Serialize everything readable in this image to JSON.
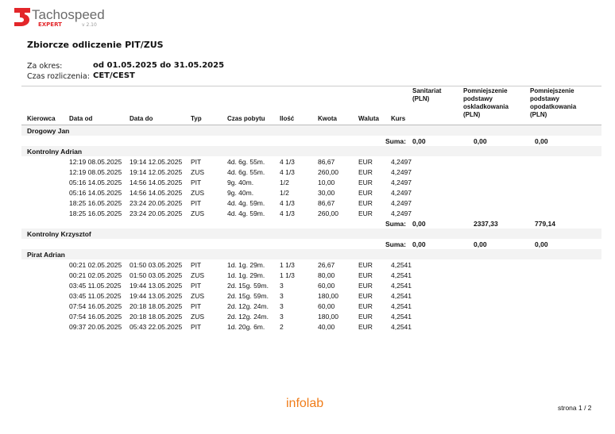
{
  "header": {
    "brand": "Tachospeed",
    "edition": "EXPERT",
    "version": "v 2.10",
    "title": "Zbiorcze odliczenie PIT/ZUS",
    "period_label": "Za okres:",
    "period_value": "od 01.05.2025 do 31.05.2025",
    "tz_label": "Czas rozliczenia:",
    "tz_value": "CET/CEST",
    "brand_color": "#e3262a"
  },
  "columns": [
    "Kierowca",
    "Data od",
    "Data do",
    "Typ",
    "Czas pobytu",
    "Ilość",
    "Kwota",
    "Waluta",
    "Kurs",
    "Sanitariat (PLN)",
    "Pomniejszenie podstawy oskladkowania (PLN)",
    "Pomniejszenie podstawy opodatkowania (PLN)"
  ],
  "sum_label": "Suma:",
  "groups": [
    {
      "driver": "Drogowy Jan",
      "rows": [],
      "sum": [
        "0,00",
        "0,00",
        "0,00"
      ]
    },
    {
      "driver": "Kontrolny Adrian",
      "rows": [
        [
          "12:19 08.05.2025",
          "19:14 12.05.2025",
          "PIT",
          "4d. 6g. 55m.",
          "4 1/3",
          "86,67",
          "EUR",
          "4,2497"
        ],
        [
          "12:19 08.05.2025",
          "19:14 12.05.2025",
          "ZUS",
          "4d. 6g. 55m.",
          "4 1/3",
          "260,00",
          "EUR",
          "4,2497"
        ],
        [
          "05:16 14.05.2025",
          "14:56 14.05.2025",
          "PIT",
          "9g. 40m.",
          "1/2",
          "10,00",
          "EUR",
          "4,2497"
        ],
        [
          "05:16 14.05.2025",
          "14:56 14.05.2025",
          "ZUS",
          "9g. 40m.",
          "1/2",
          "30,00",
          "EUR",
          "4,2497"
        ],
        [
          "18:25 16.05.2025",
          "23:24 20.05.2025",
          "PIT",
          "4d. 4g. 59m.",
          "4 1/3",
          "86,67",
          "EUR",
          "4,2497"
        ],
        [
          "18:25 16.05.2025",
          "23:24 20.05.2025",
          "ZUS",
          "4d. 4g. 59m.",
          "4 1/3",
          "260,00",
          "EUR",
          "4,2497"
        ]
      ],
      "sum": [
        "0,00",
        "2337,33",
        "779,14"
      ]
    },
    {
      "driver": "Kontrolny Krzysztof",
      "rows": [],
      "sum": [
        "0,00",
        "0,00",
        "0,00"
      ]
    },
    {
      "driver": "Pirat Adrian",
      "rows": [
        [
          "00:21 02.05.2025",
          "01:50 03.05.2025",
          "PIT",
          "1d. 1g. 29m.",
          "1 1/3",
          "26,67",
          "EUR",
          "4,2541"
        ],
        [
          "00:21 02.05.2025",
          "01:50 03.05.2025",
          "ZUS",
          "1d. 1g. 29m.",
          "1 1/3",
          "80,00",
          "EUR",
          "4,2541"
        ],
        [
          "03:45 11.05.2025",
          "19:44 13.05.2025",
          "PIT",
          "2d. 15g. 59m.",
          "3",
          "60,00",
          "EUR",
          "4,2541"
        ],
        [
          "03:45 11.05.2025",
          "19:44 13.05.2025",
          "ZUS",
          "2d. 15g. 59m.",
          "3",
          "180,00",
          "EUR",
          "4,2541"
        ],
        [
          "07:54 16.05.2025",
          "20:18 18.05.2025",
          "PIT",
          "2d. 12g. 24m.",
          "3",
          "60,00",
          "EUR",
          "4,2541"
        ],
        [
          "07:54 16.05.2025",
          "20:18 18.05.2025",
          "ZUS",
          "2d. 12g. 24m.",
          "3",
          "180,00",
          "EUR",
          "4,2541"
        ],
        [
          "09:37 20.05.2025",
          "05:43 22.05.2025",
          "PIT",
          "1d. 20g. 6m.",
          "2",
          "40,00",
          "EUR",
          "4,2541"
        ]
      ]
    }
  ],
  "footer": {
    "logo": "infolab",
    "page": "strona 1 / 2",
    "logo_color": "#f07d1a"
  }
}
